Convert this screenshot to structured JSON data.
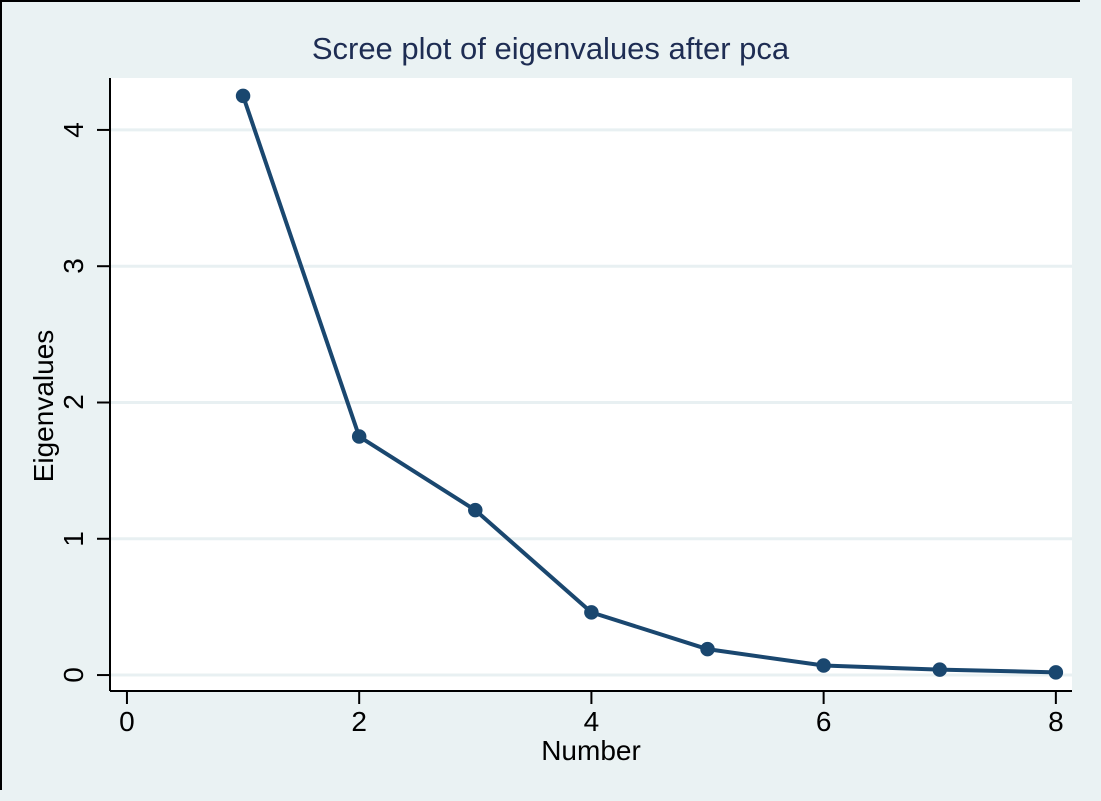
{
  "title": "Scree plot of eigenvalues after pca",
  "colors": {
    "background": "#eaf2f3",
    "plot_background": "#ffffff",
    "gridline": "#e8f0f2",
    "axis": "#000000",
    "tick_text": "#000000",
    "title_text": "#1e2d53",
    "series": "#1a476f"
  },
  "chart_data": {
    "type": "line",
    "title": "Scree plot of eigenvalues after pca",
    "xlabel": "Number",
    "ylabel": "Eigenvalues",
    "x": [
      1,
      2,
      3,
      4,
      5,
      6,
      7,
      8
    ],
    "values": [
      4.25,
      1.75,
      1.21,
      0.46,
      0.19,
      0.07,
      0.04,
      0.02
    ],
    "series_name": "Eigenvalues",
    "x_ticks": [
      0,
      2,
      4,
      6,
      8
    ],
    "y_ticks": [
      0,
      1,
      2,
      3,
      4
    ],
    "xlim": [
      -0.146,
      8.139
    ],
    "ylim": [
      -0.117,
      4.381
    ],
    "grid": "horizontal-gridlines-on",
    "legend": "none",
    "marker": "circle"
  }
}
